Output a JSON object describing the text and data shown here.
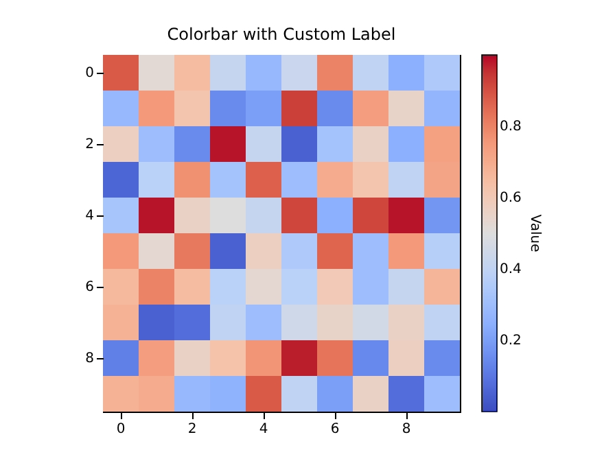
{
  "chart_data": {
    "type": "heatmap",
    "title": "Colorbar with Custom Label",
    "clabel": "Value",
    "categories": [
      "0",
      null,
      "2",
      null,
      "4",
      null,
      "6",
      null,
      "8",
      null
    ],
    "y_categories": [
      "0",
      null,
      "2",
      null,
      "4",
      null,
      "6",
      null,
      "8",
      null
    ],
    "cells": [
      [
        0.88,
        0.52,
        0.65,
        0.42,
        0.28,
        0.43,
        0.8,
        0.4,
        0.25,
        0.35
      ],
      [
        0.28,
        0.75,
        0.62,
        0.15,
        0.2,
        0.93,
        0.15,
        0.74,
        0.55,
        0.27
      ],
      [
        0.57,
        0.3,
        0.15,
        0.99,
        0.42,
        0.05,
        0.32,
        0.56,
        0.25,
        0.73
      ],
      [
        0.06,
        0.38,
        0.77,
        0.32,
        0.87,
        0.3,
        0.7,
        0.62,
        0.4,
        0.72
      ],
      [
        0.33,
        0.99,
        0.56,
        0.5,
        0.42,
        0.92,
        0.25,
        0.92,
        0.99,
        0.18
      ],
      [
        0.75,
        0.53,
        0.82,
        0.05,
        0.57,
        0.35,
        0.86,
        0.3,
        0.75,
        0.37
      ],
      [
        0.66,
        0.8,
        0.65,
        0.38,
        0.53,
        0.38,
        0.6,
        0.3,
        0.42,
        0.67
      ],
      [
        0.68,
        0.05,
        0.08,
        0.4,
        0.3,
        0.45,
        0.55,
        0.46,
        0.56,
        0.4
      ],
      [
        0.12,
        0.74,
        0.56,
        0.63,
        0.76,
        0.98,
        0.83,
        0.14,
        0.57,
        0.15
      ],
      [
        0.68,
        0.7,
        0.28,
        0.26,
        0.88,
        0.4,
        0.2,
        0.56,
        0.08,
        0.3
      ]
    ],
    "clim": [
      0,
      1
    ],
    "cticks": [
      0.2,
      0.4,
      0.6,
      0.8
    ]
  }
}
